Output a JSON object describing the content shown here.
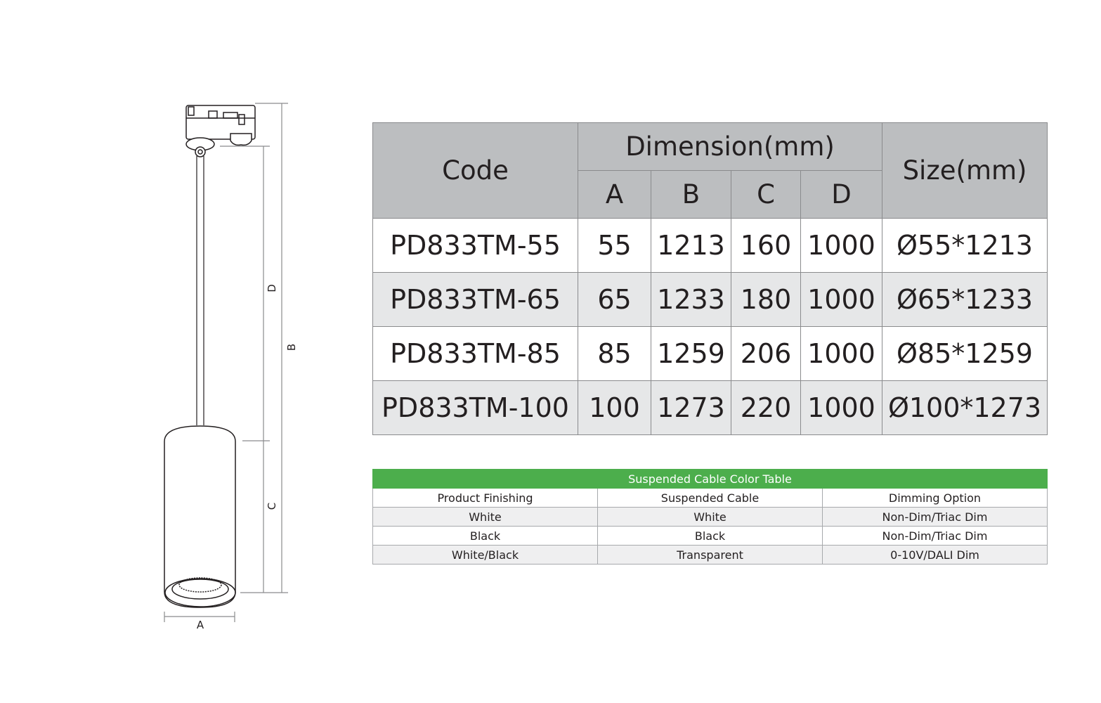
{
  "drawing": {
    "labels": {
      "a": "A",
      "b": "B",
      "c": "C",
      "d": "D"
    }
  },
  "spec_table": {
    "headers": {
      "code": "Code",
      "dimension": "Dimension(mm)",
      "size": "Size(mm)",
      "cols": [
        "A",
        "B",
        "C",
        "D"
      ]
    },
    "rows": [
      {
        "code": "PD833TM-55",
        "a": "55",
        "b": "1213",
        "c": "160",
        "d": "1000",
        "size": "Ø55*1213"
      },
      {
        "code": "PD833TM-65",
        "a": "65",
        "b": "1233",
        "c": "180",
        "d": "1000",
        "size": "Ø65*1233"
      },
      {
        "code": "PD833TM-85",
        "a": "85",
        "b": "1259",
        "c": "206",
        "d": "1000",
        "size": "Ø85*1259"
      },
      {
        "code": "PD833TM-100",
        "a": "100",
        "b": "1273",
        "c": "220",
        "d": "1000",
        "size": "Ø100*1273"
      }
    ]
  },
  "cable_table": {
    "title": "Suspended Cable Color Table",
    "title_color": "#4cae4c",
    "headers": [
      "Product Finishing",
      "Suspended Cable",
      "Dimming Option"
    ],
    "rows": [
      [
        "White",
        "White",
        "Non-Dim/Triac Dim"
      ],
      [
        "Black",
        "Black",
        "Non-Dim/Triac Dim"
      ],
      [
        "White/Black",
        "Transparent",
        "0-10V/DALI Dim"
      ]
    ]
  }
}
